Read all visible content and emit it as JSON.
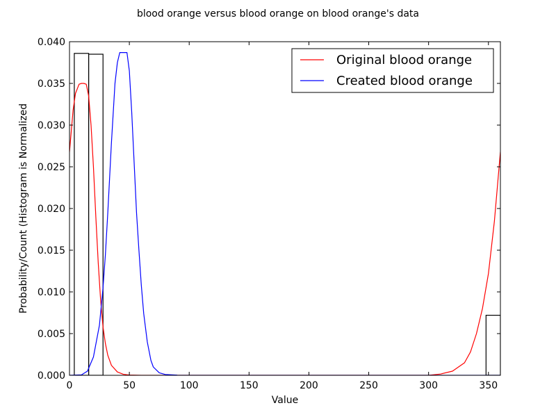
{
  "chart_data": {
    "type": "line",
    "title": "blood orange versus blood orange on blood orange's data",
    "xlabel": "Value",
    "ylabel": "Probability/Count (Histogram is Normalized",
    "xlim": [
      0,
      360
    ],
    "ylim": [
      0,
      0.04
    ],
    "xticks": [
      "0",
      "50",
      "100",
      "150",
      "200",
      "250",
      "300",
      "350"
    ],
    "yticks": [
      "0.000",
      "0.005",
      "0.010",
      "0.015",
      "0.020",
      "0.025",
      "0.030",
      "0.035",
      "0.040"
    ],
    "grid": false,
    "legend_position": "top-right",
    "histogram": {
      "bins": [
        {
          "x0": 4,
          "x1": 16,
          "value": 0.0386
        },
        {
          "x0": 16,
          "x1": 28,
          "value": 0.0385
        },
        {
          "x0": 348,
          "x1": 360,
          "value": 0.0072
        }
      ],
      "edge_color": "#000000",
      "fill_color": "none"
    },
    "series": [
      {
        "name": "Original blood orange",
        "color": "#ff0000",
        "x": [
          0,
          3,
          5,
          8,
          10,
          12,
          14,
          16,
          18,
          20,
          22,
          24,
          26,
          28,
          30,
          32,
          35,
          40,
          45,
          50,
          60,
          70,
          100,
          200,
          280,
          300,
          310,
          320,
          330,
          335,
          340,
          345,
          350,
          355,
          360
        ],
        "y": [
          0.0268,
          0.0318,
          0.0338,
          0.0349,
          0.035,
          0.035,
          0.0349,
          0.0335,
          0.03,
          0.025,
          0.019,
          0.0135,
          0.009,
          0.0058,
          0.0038,
          0.0024,
          0.0012,
          0.0004,
          0.00012,
          3e-05,
          0.0,
          0.0,
          0.0,
          0.0,
          0.0,
          0.0,
          0.00015,
          0.0005,
          0.0015,
          0.0028,
          0.005,
          0.008,
          0.0122,
          0.0185,
          0.0268
        ]
      },
      {
        "name": "Created blood orange",
        "color": "#0000ff",
        "x": [
          0,
          10,
          15,
          20,
          25,
          28,
          30,
          32,
          35,
          38,
          40,
          42,
          44,
          46,
          48,
          50,
          52,
          54,
          56,
          58,
          60,
          62,
          65,
          68,
          70,
          75,
          80,
          90,
          100,
          150,
          360
        ],
        "y": [
          0.0,
          5e-05,
          0.0005,
          0.0022,
          0.006,
          0.0105,
          0.0145,
          0.0195,
          0.0278,
          0.035,
          0.0375,
          0.0387,
          0.0387,
          0.0387,
          0.0387,
          0.0365,
          0.0315,
          0.0255,
          0.0195,
          0.015,
          0.0108,
          0.0074,
          0.004,
          0.0018,
          0.001,
          0.0003,
          0.0001,
          2e-05,
          0.0,
          0.0,
          0.0
        ]
      }
    ]
  }
}
